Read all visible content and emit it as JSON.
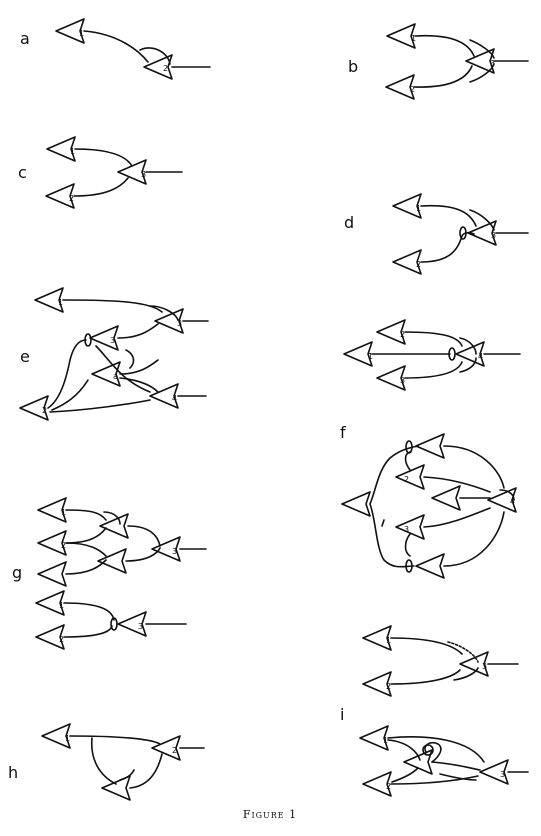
{
  "figure": {
    "caption": "Figure 1",
    "panel_labels": [
      "a",
      "b",
      "c",
      "d",
      "e",
      "f",
      "g",
      "h",
      "i"
    ],
    "neuron_labels": [
      "1",
      "2",
      "3",
      "4"
    ]
  }
}
